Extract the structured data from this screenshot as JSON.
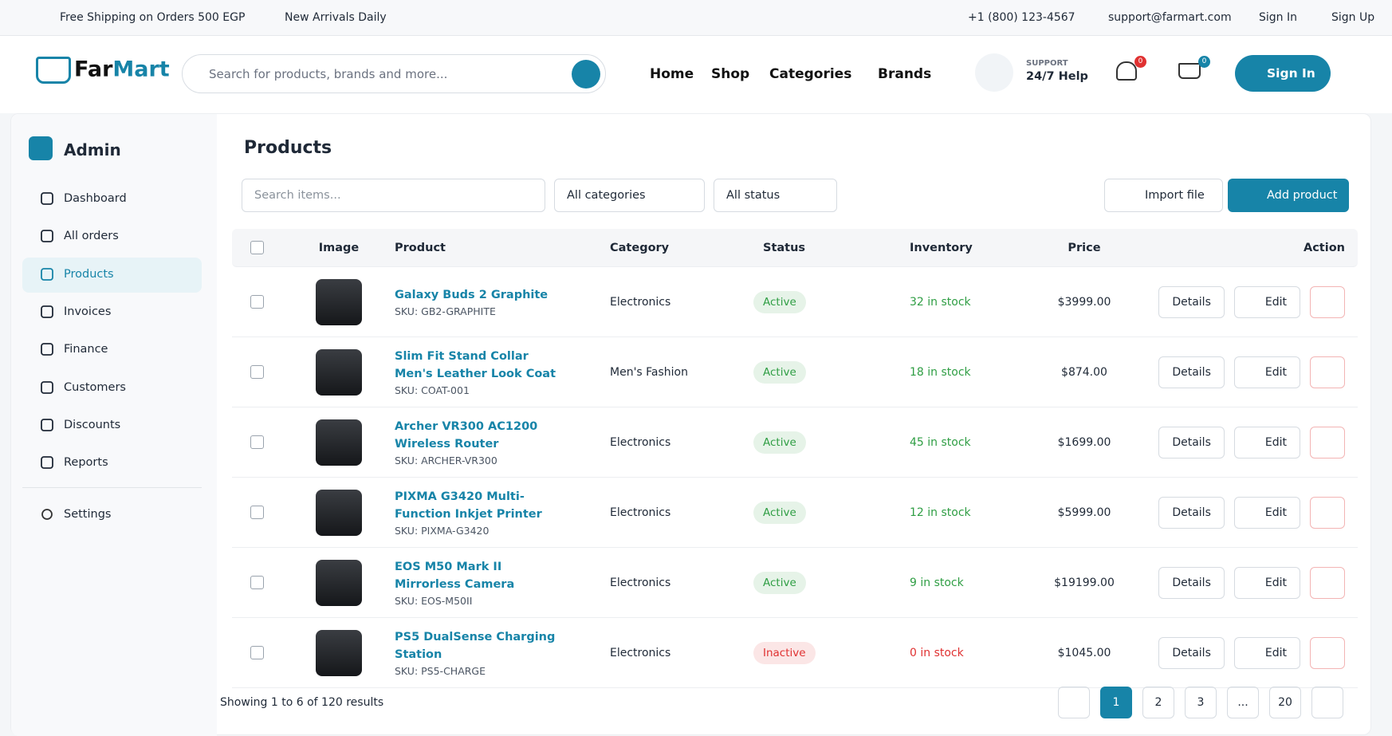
{
  "topbar": {
    "shipping": "Free Shipping on Orders 500 EGP",
    "arrivals": "New Arrivals Daily",
    "phone": "+1 (800) 123-4567",
    "email": "support@farmart.com",
    "sign_in": "Sign In",
    "sign_up": "Sign Up"
  },
  "header": {
    "logo_a": "Far",
    "logo_b": "Mart",
    "search_placeholder": "Search for products, brands and more...",
    "nav": [
      "Home",
      "Shop",
      "Categories",
      "Brands"
    ],
    "support_label": "SUPPORT",
    "support_text": "24/7 Help",
    "wishlist_count": 0,
    "cart_count": 0,
    "sign_in": "Sign In"
  },
  "sidebar": {
    "title": "Admin",
    "items": [
      "Dashboard",
      "All orders",
      "Products",
      "Invoices",
      "Finance",
      "Customers",
      "Discounts",
      "Reports"
    ],
    "settings": "Settings"
  },
  "main": {
    "title": "Products",
    "search_placeholder": "Search items...",
    "filters": [
      "All categories",
      "All status"
    ],
    "import": "Import file",
    "add": "Add product",
    "columns": [
      "Image",
      "Product",
      "Category",
      "Status",
      "Inventory",
      "Price",
      "Action"
    ],
    "details": "Details",
    "edit": "Edit",
    "rows": [
      {
        "name": "Galaxy Buds 2 Graphite",
        "sku": "SKU: GB2-GRAPHITE",
        "category": "Electronics",
        "status": "Active",
        "inventory": "32 in stock",
        "price": "$3999.00",
        "status_color": "#2f9e44"
      },
      {
        "name": "Slim Fit Stand Collar Men's Leather Look Coat",
        "sku": "SKU: COAT-001",
        "category": "Men's Fashion",
        "status": "Active",
        "inventory": "18 in stock",
        "price": "$874.00",
        "status_color": "#2f9e44"
      },
      {
        "name": "Archer VR300 AC1200 Wireless Router",
        "sku": "SKU: ARCHER-VR300",
        "category": "Electronics",
        "status": "Active",
        "inventory": "45 in stock",
        "price": "$1699.00",
        "status_color": "#2f9e44"
      },
      {
        "name": "PIXMA G3420 Multi-Function Inkjet Printer",
        "sku": "SKU: PIXMA-G3420",
        "category": "Electronics",
        "status": "Active",
        "inventory": "12 in stock",
        "price": "$5999.00",
        "status_color": "#2f9e44"
      },
      {
        "name": "EOS M50 Mark II Mirrorless Camera",
        "sku": "SKU: EOS-M50II",
        "category": "Electronics",
        "status": "Active",
        "inventory": "9 in stock",
        "price": "$19199.00",
        "status_color": "#2f9e44"
      },
      {
        "name": "PS5 DualSense Charging Station",
        "sku": "SKU: PS5-CHARGE",
        "category": "Electronics",
        "status": "Inactive",
        "inventory": "0 in stock",
        "price": "$1045.00",
        "status_color": "#e03131"
      }
    ],
    "showing": "Showing 1 to 6 of 120 results",
    "pages": [
      "1",
      "2",
      "3",
      "...",
      "20"
    ]
  }
}
